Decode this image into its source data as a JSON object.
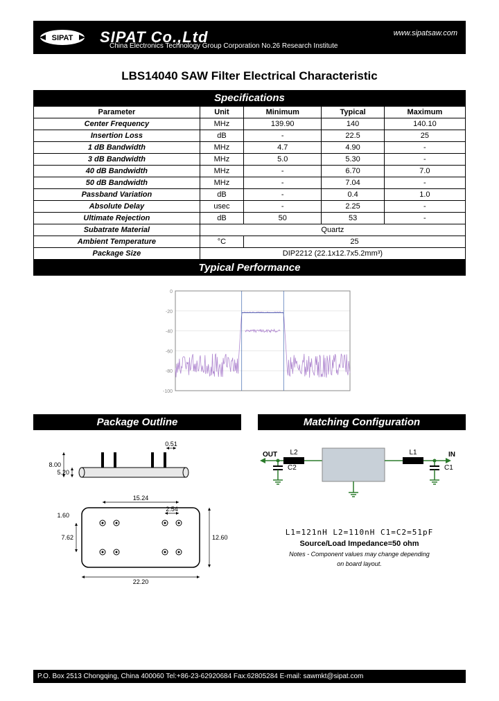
{
  "header": {
    "company": "SIPAT Co.,Ltd",
    "website": "www.sipatsaw.com",
    "subtitle": "China Electronics Technology Group Corporation No.26 Research Institute",
    "logo_text": "SIPAT"
  },
  "doc_title": "LBS14040 SAW Filter Electrical Characteristic",
  "sections": {
    "specs": "Specifications",
    "perf": "Typical Performance",
    "pkg": "Package Outline",
    "match": "Matching Configuration"
  },
  "spec_table": {
    "headers": [
      "Parameter",
      "Unit",
      "Minimum",
      "Typical",
      "Maximum"
    ],
    "rows": [
      [
        "Center Frequency",
        "MHz",
        "139.90",
        "140",
        "140.10"
      ],
      [
        "Insertion Loss",
        "dB",
        "-",
        "22.5",
        "25"
      ],
      [
        "1 dB Bandwidth",
        "MHz",
        "4.7",
        "4.90",
        "-"
      ],
      [
        "3 dB Bandwidth",
        "MHz",
        "5.0",
        "5.30",
        "-"
      ],
      [
        "40 dB Bandwidth",
        "MHz",
        "-",
        "6.70",
        "7.0"
      ],
      [
        "50 dB Bandwidth",
        "MHz",
        "-",
        "7.04",
        "-"
      ],
      [
        "Passband Variation",
        "dB",
        "-",
        "0.4",
        "1.0"
      ],
      [
        "Absolute Delay",
        "usec",
        "-",
        "2.25",
        "-"
      ],
      [
        "Ultimate Rejection",
        "dB",
        "50",
        "53",
        "-"
      ]
    ],
    "substrate": {
      "label": "Subatrate Material",
      "value": "Quartz"
    },
    "ambient": {
      "label": "Ambient Temperature",
      "unit": "°C",
      "value": "25"
    },
    "package": {
      "label": "Package Size",
      "value": "DIP2212   (22.1x12.7x5.2mm³)"
    }
  },
  "chart": {
    "yticks": [
      "0",
      "-20",
      "-40",
      "-60",
      "-80",
      "-100"
    ],
    "trace_color": "#b088d0",
    "box_color": "#2050a0",
    "axis_color": "#888",
    "grid_color": "#e8e8e8",
    "noise_floor": -75,
    "passband_top": -22,
    "ripple_level": -40,
    "x_pass_start": 0.38,
    "x_pass_end": 0.62
  },
  "package": {
    "dims": {
      "pin": "0.51",
      "h1": "8.00",
      "h2": "5.20",
      "w_inner": "15.24",
      "pitch": "2.54",
      "edge": "1.60",
      "vpitch": "7.62",
      "height": "12.60",
      "width": "22.20"
    },
    "line_color": "#000",
    "fill": "#e8e8e8"
  },
  "matching": {
    "labels": {
      "out": "OUT",
      "in": "IN",
      "l1": "L1",
      "l2": "L2",
      "c1": "C1",
      "c2": "C2"
    },
    "line_color": "#2a7a2a",
    "saw_color": "#c8d0d8",
    "comp_color": "#000",
    "eq": "L1=121nH  L2=110nH  C1=C2=51pF",
    "src": "Source/Load Impedance=50 ohm",
    "note1": "Notes - Component values may change depending",
    "note2": "on board layout."
  },
  "footer": "P.O. Box 2513 Chongqing, China 400060  Tel:+86-23-62920684  Fax:62805284  E-mail: sawmkt@sipat.com"
}
